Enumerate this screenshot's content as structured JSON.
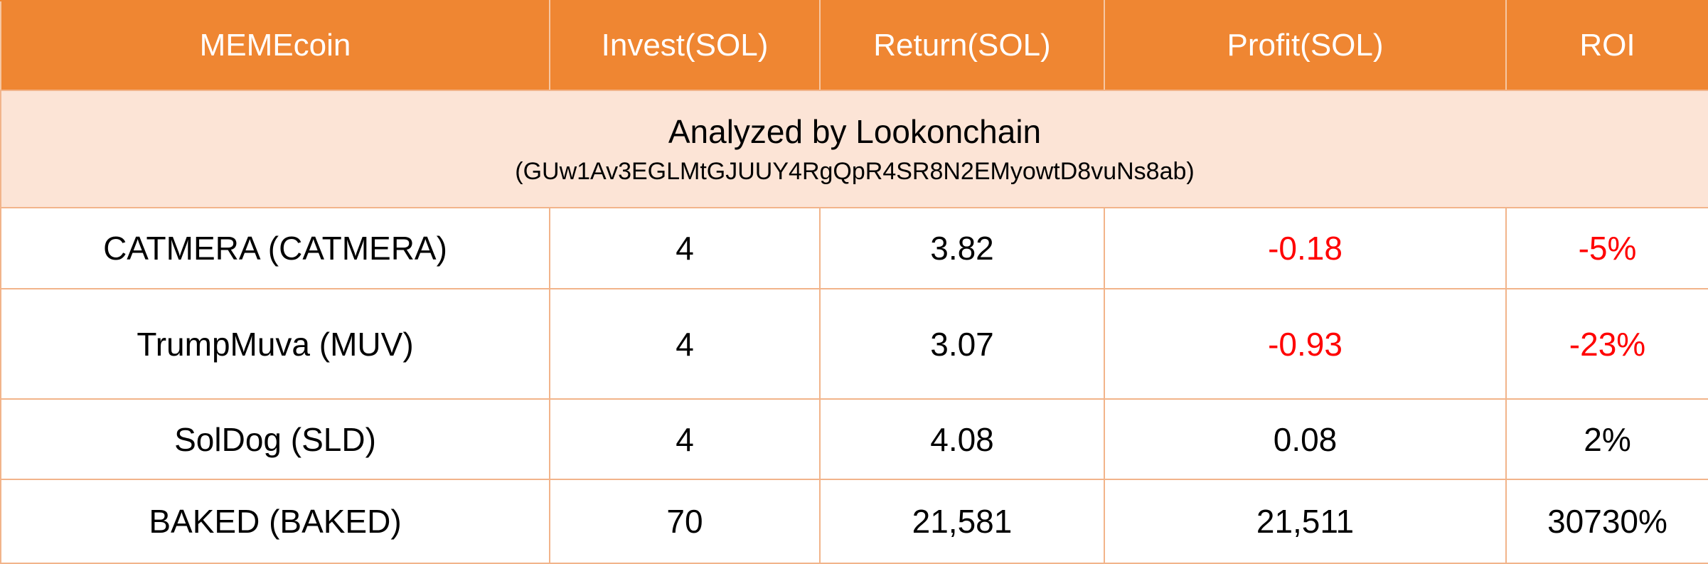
{
  "table": {
    "headers": [
      "MEMEcoin",
      "Invest(SOL)",
      "Return(SOL)",
      "Profit(SOL)",
      "ROI"
    ],
    "banner": {
      "title": "Analyzed by Lookonchain",
      "address": "(GUw1Av3EGLMtGJUUY4RgQpR4SR8N2EMyowtD8vuNs8ab)"
    },
    "rows": [
      {
        "coin": "CATMERA (CATMERA)",
        "invest": "4",
        "return": "3.82",
        "profit": "-0.18",
        "roi": "-5%"
      },
      {
        "coin": "TrumpMuva (MUV)",
        "invest": "4",
        "return": "3.07",
        "profit": "-0.93",
        "roi": "-23%"
      },
      {
        "coin": "SolDog (SLD)",
        "invest": "4",
        "return": "4.08",
        "profit": "0.08",
        "roi": "2%"
      },
      {
        "coin": "BAKED (BAKED)",
        "invest": "70",
        "return": "21,581",
        "profit": "21,511",
        "roi": "30730%"
      }
    ]
  },
  "colors": {
    "header_bg": "#EF8632",
    "header_text": "#FFFFFF",
    "banner_bg": "#FCE4D6",
    "grid": "#F2B48A",
    "negative": "#FF0000",
    "text": "#000000"
  }
}
